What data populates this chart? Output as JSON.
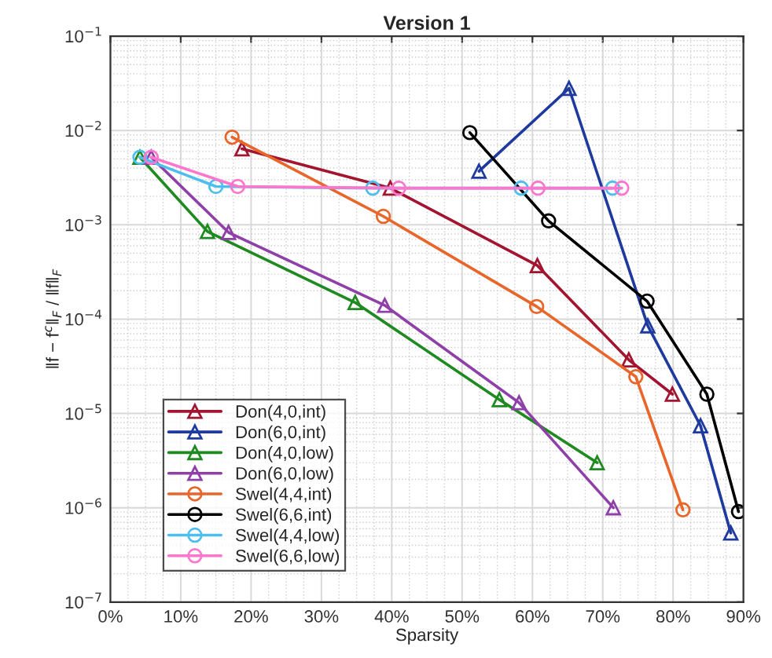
{
  "chart_data": {
    "type": "line",
    "title": "Version 1",
    "xlabel": "Sparsity",
    "ylabel": "‖f − f$^{c}$‖$_{F}$ / ‖f‖$_{F}$",
    "log": "y",
    "grid": true,
    "legend": "bottom left",
    "line_style": "solid",
    "xlim": [
      0,
      90
    ],
    "ylim": [
      1e-07,
      0.1
    ],
    "xticks": [
      {
        "value": 0,
        "label": "0%"
      },
      {
        "value": 10,
        "label": "10%"
      },
      {
        "value": 20,
        "label": "20%"
      },
      {
        "value": 30,
        "label": "30%"
      },
      {
        "value": 40,
        "label": "40%"
      },
      {
        "value": 50,
        "label": "50%"
      },
      {
        "value": 60,
        "label": "60%"
      },
      {
        "value": 70,
        "label": "70%"
      },
      {
        "value": 80,
        "label": "80%"
      },
      {
        "value": 90,
        "label": "90%"
      }
    ],
    "yticks": [
      {
        "value": 1e-07,
        "label": "10$^{−7}$"
      },
      {
        "value": 1e-06,
        "label": "10$^{−6}$"
      },
      {
        "value": 1e-05,
        "label": "10$^{−5}$"
      },
      {
        "value": 0.0001,
        "label": "10$^{−4}$"
      },
      {
        "value": 0.001,
        "label": "10$^{−3}$"
      },
      {
        "value": 0.01,
        "label": "10$^{−2}$"
      },
      {
        "value": 0.1,
        "label": "10$^{−1}$"
      }
    ],
    "series": [
      {
        "name": "Don(4,0,int)",
        "color": "#a2142f",
        "marker": "triangle",
        "x": [
          18.7,
          39.8,
          60.7,
          73.7,
          79.9
        ],
        "values": [
          0.0064,
          0.00245,
          0.00037,
          3.7e-05,
          1.6e-05
        ]
      },
      {
        "name": "Don(6,0,int)",
        "color": "#1f3a9e",
        "marker": "triangle",
        "x": [
          52.4,
          65.2,
          76.4,
          83.9,
          88.2
        ],
        "values": [
          0.0037,
          0.028,
          8.5e-05,
          7.4e-06,
          5.4e-07
        ]
      },
      {
        "name": "Don(4,0,low)",
        "color": "#1f8a1f",
        "marker": "triangle",
        "x": [
          4.2,
          13.8,
          34.8,
          55.3,
          69.2
        ],
        "values": [
          0.0052,
          0.00085,
          0.00015,
          1.4e-05,
          3e-06
        ]
      },
      {
        "name": "Don(6,0,low)",
        "color": "#8e3fa8",
        "marker": "triangle",
        "x": [
          5.8,
          16.8,
          39.0,
          58.1,
          71.5
        ],
        "values": [
          0.0052,
          0.00083,
          0.00014,
          1.3e-05,
          1e-06
        ]
      },
      {
        "name": "Swel(4,4,int)",
        "color": "#e8662a",
        "marker": "circle",
        "x": [
          17.3,
          38.8,
          60.6,
          74.7,
          81.4
        ],
        "values": [
          0.0085,
          0.00123,
          0.000136,
          2.45e-05,
          9.5e-07
        ]
      },
      {
        "name": "Swel(6,6,int)",
        "color": "#000000",
        "marker": "circle",
        "x": [
          51.1,
          62.3,
          76.3,
          84.8,
          89.3
        ],
        "values": [
          0.0095,
          0.0011,
          0.000155,
          1.6e-05,
          9.1e-07
        ]
      },
      {
        "name": "Swel(4,4,low)",
        "color": "#4dbeee",
        "marker": "circle",
        "x": [
          4.2,
          15.0,
          37.3,
          58.4,
          71.4
        ],
        "values": [
          0.0052,
          0.00255,
          0.00245,
          0.00245,
          0.00245
        ]
      },
      {
        "name": "Swel(6,6,low)",
        "color": "#ff77cc",
        "marker": "circle",
        "x": [
          5.8,
          18.1,
          41.0,
          60.8,
          72.7
        ],
        "values": [
          0.0052,
          0.00255,
          0.00245,
          0.00245,
          0.00245
        ]
      }
    ]
  }
}
